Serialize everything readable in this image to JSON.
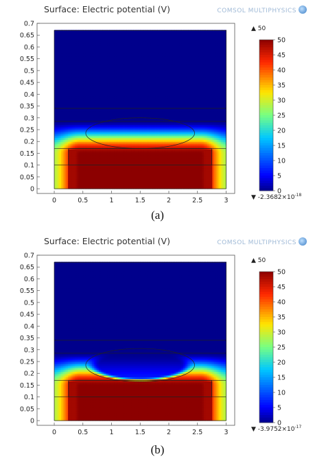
{
  "panels": [
    {
      "id": "a",
      "title": "Surface: Electric potential (V)",
      "caption": "(a)",
      "max_label": "▲ 50",
      "min_label_text": "▼ -2.3682×10",
      "min_label_exp": "-18",
      "drop_depleted": false
    },
    {
      "id": "b",
      "title": "Surface: Electric potential (V)",
      "caption": "(b)",
      "max_label": "▲ 50",
      "min_label_text": "▼ -3.9752×10",
      "min_label_exp": "-17",
      "drop_depleted": true
    }
  ],
  "logo_text": "COMSOL MULTIPHYSICS",
  "chart_data": [
    {
      "type": "heatmap",
      "title": "Surface: Electric potential (V)",
      "xlim": [
        -0.3,
        3.15
      ],
      "ylim": [
        -0.02,
        0.7
      ],
      "xticks": [
        0,
        0.5,
        1,
        1.5,
        2,
        2.5,
        3
      ],
      "xtick_labels": [
        "0",
        "0.5",
        "1",
        "1.5",
        "2",
        "2.5",
        "3"
      ],
      "yticks": [
        0,
        0.05,
        0.1,
        0.15,
        0.2,
        0.25,
        0.3,
        0.35,
        0.4,
        0.45,
        0.5,
        0.55,
        0.6,
        0.65,
        0.7
      ],
      "ytick_labels": [
        "0",
        "0.05",
        "0.1",
        "0.15",
        "0.2",
        "0.25",
        "0.3",
        "0.35",
        "0.4",
        "0.45",
        "0.5",
        "0.55",
        "0.6",
        "0.65",
        "0.7"
      ],
      "colorbar": {
        "min": -2.3682e-18,
        "max": 50,
        "ticks": [
          0,
          5,
          10,
          15,
          20,
          25,
          30,
          35,
          40,
          45,
          50
        ]
      },
      "domain": {
        "x": [
          0,
          3
        ],
        "y": [
          0,
          0.67
        ]
      },
      "boundaries_y": [
        0.1,
        0.17,
        0.285,
        0.34
      ],
      "electrode": {
        "x": [
          0.25,
          2.75
        ],
        "y": [
          0.1,
          0.17
        ]
      },
      "droplet": {
        "cx": 1.5,
        "cy": 0.235,
        "rx": 0.95,
        "ry": 0.065
      }
    },
    {
      "type": "heatmap",
      "title": "Surface: Electric potential (V)",
      "xlim": [
        -0.3,
        3.15
      ],
      "ylim": [
        -0.02,
        0.7
      ],
      "xticks": [
        0,
        0.5,
        1,
        1.5,
        2,
        2.5,
        3
      ],
      "xtick_labels": [
        "0",
        "0.5",
        "1",
        "1.5",
        "2",
        "2.5",
        "3"
      ],
      "yticks": [
        0,
        0.05,
        0.1,
        0.15,
        0.2,
        0.25,
        0.3,
        0.35,
        0.4,
        0.45,
        0.5,
        0.55,
        0.6,
        0.65,
        0.7
      ],
      "ytick_labels": [
        "0",
        "0.05",
        "0.1",
        "0.15",
        "0.2",
        "0.25",
        "0.3",
        "0.35",
        "0.4",
        "0.45",
        "0.5",
        "0.55",
        "0.6",
        "0.65",
        "0.7"
      ],
      "colorbar": {
        "min": -3.9752e-17,
        "max": 50,
        "ticks": [
          0,
          5,
          10,
          15,
          20,
          25,
          30,
          35,
          40,
          45,
          50
        ]
      },
      "domain": {
        "x": [
          0,
          3
        ],
        "y": [
          0,
          0.67
        ]
      },
      "boundaries_y": [
        0.1,
        0.17,
        0.285,
        0.34
      ],
      "electrode": {
        "x": [
          0.25,
          2.75
        ],
        "y": [
          0.1,
          0.17
        ]
      },
      "droplet": {
        "cx": 1.5,
        "cy": 0.235,
        "rx": 0.95,
        "ry": 0.07
      }
    }
  ]
}
